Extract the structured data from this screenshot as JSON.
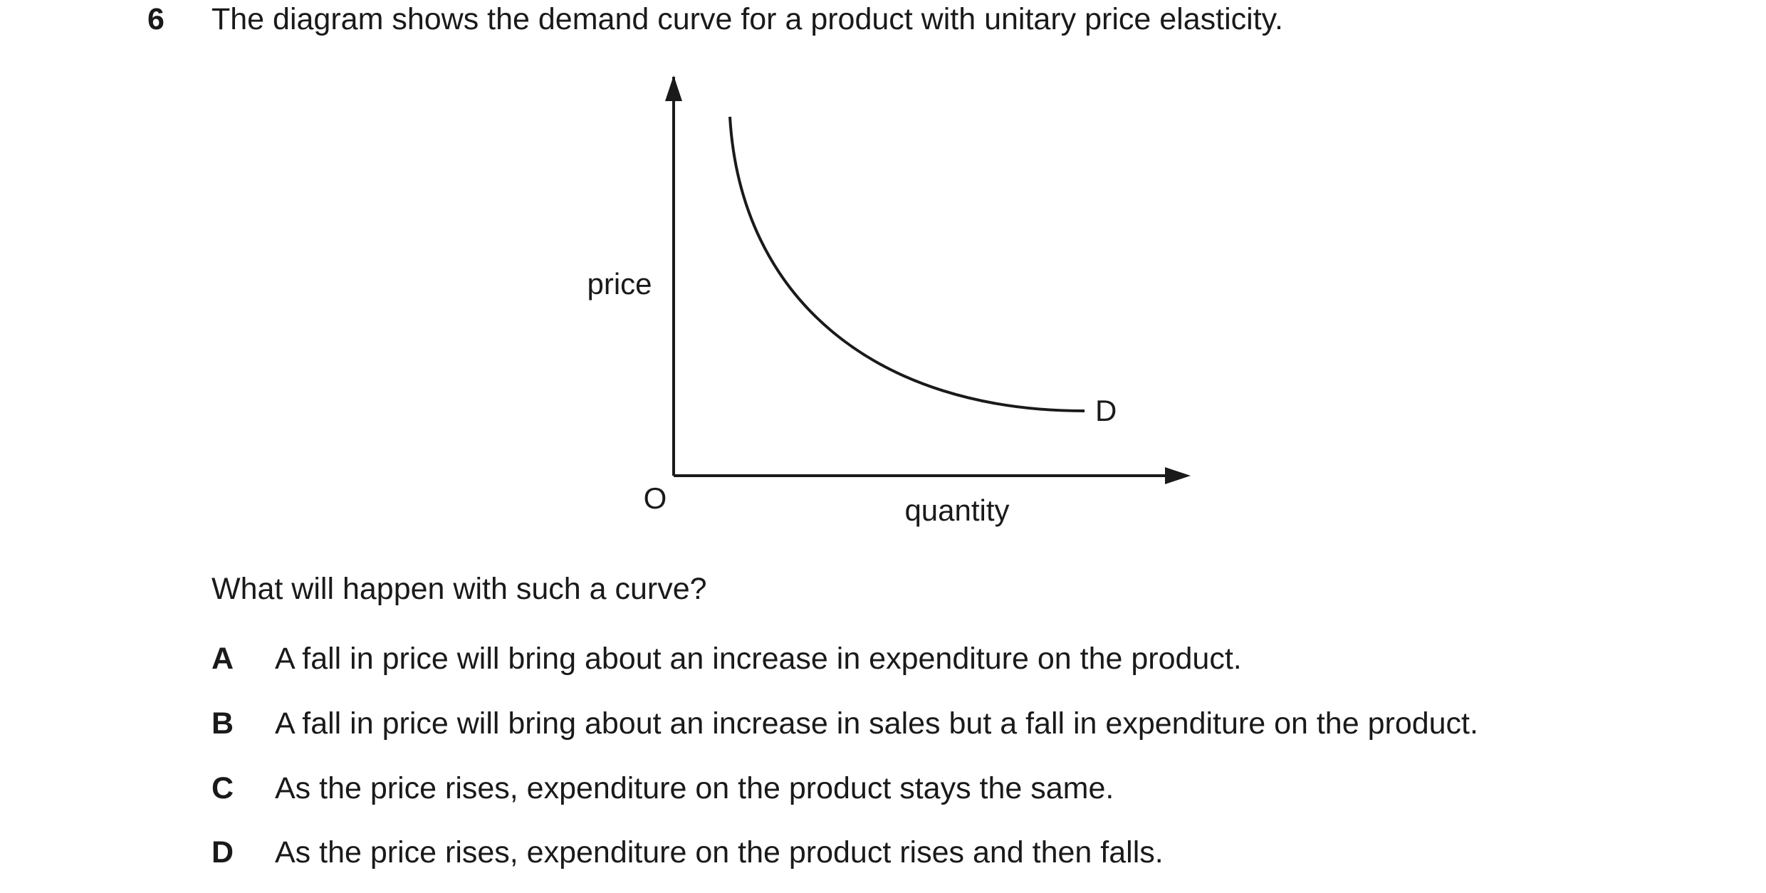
{
  "question": {
    "number": "6",
    "text": "The diagram shows the demand curve for a product with unitary price elasticity."
  },
  "diagram": {
    "y_axis_label": "price",
    "x_axis_label": "quantity",
    "origin_label": "O",
    "curve_label": "D"
  },
  "prompt": "What will happen with such a curve?",
  "options": [
    {
      "letter": "A",
      "text": "A fall in price will bring about an increase in expenditure on the product."
    },
    {
      "letter": "B",
      "text": "A fall in price will bring about an increase in sales but a fall in expenditure on the product."
    },
    {
      "letter": "C",
      "text": "As the price rises, expenditure on the product stays the same."
    },
    {
      "letter": "D",
      "text": "As the price rises, expenditure on the product rises and then falls."
    }
  ]
}
